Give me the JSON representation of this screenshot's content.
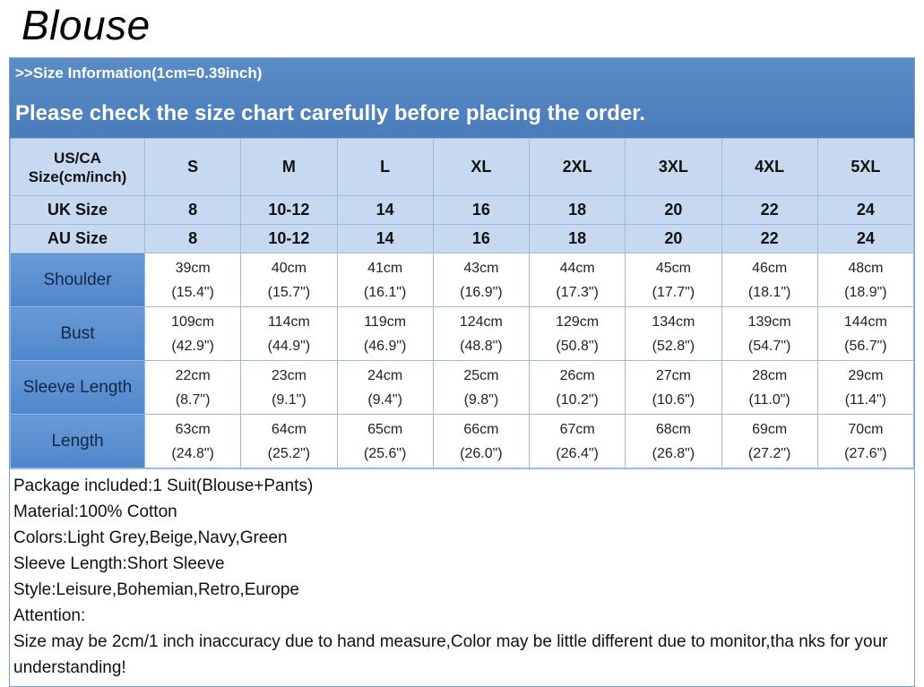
{
  "title": "Blouse",
  "banner": {
    "info": ">>Size Information(1cm=0.39inch)",
    "check": "Please check the size chart carefully before placing the order."
  },
  "header": {
    "label": "US/CA Size(cm/inch)",
    "sizes": [
      "S",
      "M",
      "L",
      "XL",
      "2XL",
      "3XL",
      "4XL",
      "5XL"
    ]
  },
  "uk": {
    "label": "UK Size",
    "values": [
      "8",
      "10-12",
      "14",
      "16",
      "18",
      "20",
      "22",
      "24"
    ]
  },
  "au": {
    "label": "AU Size",
    "values": [
      "8",
      "10-12",
      "14",
      "16",
      "18",
      "20",
      "22",
      "24"
    ]
  },
  "measurements": [
    {
      "label": "Shoulder",
      "cm": [
        "39cm",
        "40cm",
        "41cm",
        "43cm",
        "44cm",
        "45cm",
        "46cm",
        "48cm"
      ],
      "inch": [
        "(15.4\")",
        "(15.7\")",
        "(16.1\")",
        "(16.9\")",
        "(17.3\")",
        "(17.7\")",
        "(18.1\")",
        "(18.9\")"
      ]
    },
    {
      "label": "Bust",
      "cm": [
        "109cm",
        "114cm",
        "119cm",
        "124cm",
        "129cm",
        "134cm",
        "139cm",
        "144cm"
      ],
      "inch": [
        "(42.9\")",
        "(44.9\")",
        "(46.9\")",
        "(48.8\")",
        "(50.8\")",
        "(52.8\")",
        "(54.7\")",
        "(56.7\")"
      ]
    },
    {
      "label": "Sleeve Length",
      "cm": [
        "22cm",
        "23cm",
        "24cm",
        "25cm",
        "26cm",
        "27cm",
        "28cm",
        "29cm"
      ],
      "inch": [
        "(8.7\")",
        "(9.1\")",
        "(9.4\")",
        "(9.8\")",
        "(10.2\")",
        "(10.6\")",
        "(11.0\")",
        "(11.4\")"
      ]
    },
    {
      "label": "Length",
      "cm": [
        "63cm",
        "64cm",
        "65cm",
        "66cm",
        "67cm",
        "68cm",
        "69cm",
        "70cm"
      ],
      "inch": [
        "(24.8\")",
        "(25.2\")",
        "(25.6\")",
        "(26.0\")",
        "(26.4\")",
        "(26.8\")",
        "(27.2\")",
        "(27.6\")"
      ]
    }
  ],
  "notes": [
    "Package included:1 Suit(Blouse+Pants)",
    "Material:100% Cotton",
    "Colors:Light Grey,Beige,Navy,Green",
    "Sleeve Length:Short Sleeve",
    "Style:Leisure,Bohemian,Retro,Europe",
    "Attention:",
    "Size may be 2cm/1 inch inaccuracy due to hand measure,Color may be little different due to monitor,tha nks for your understanding!"
  ]
}
